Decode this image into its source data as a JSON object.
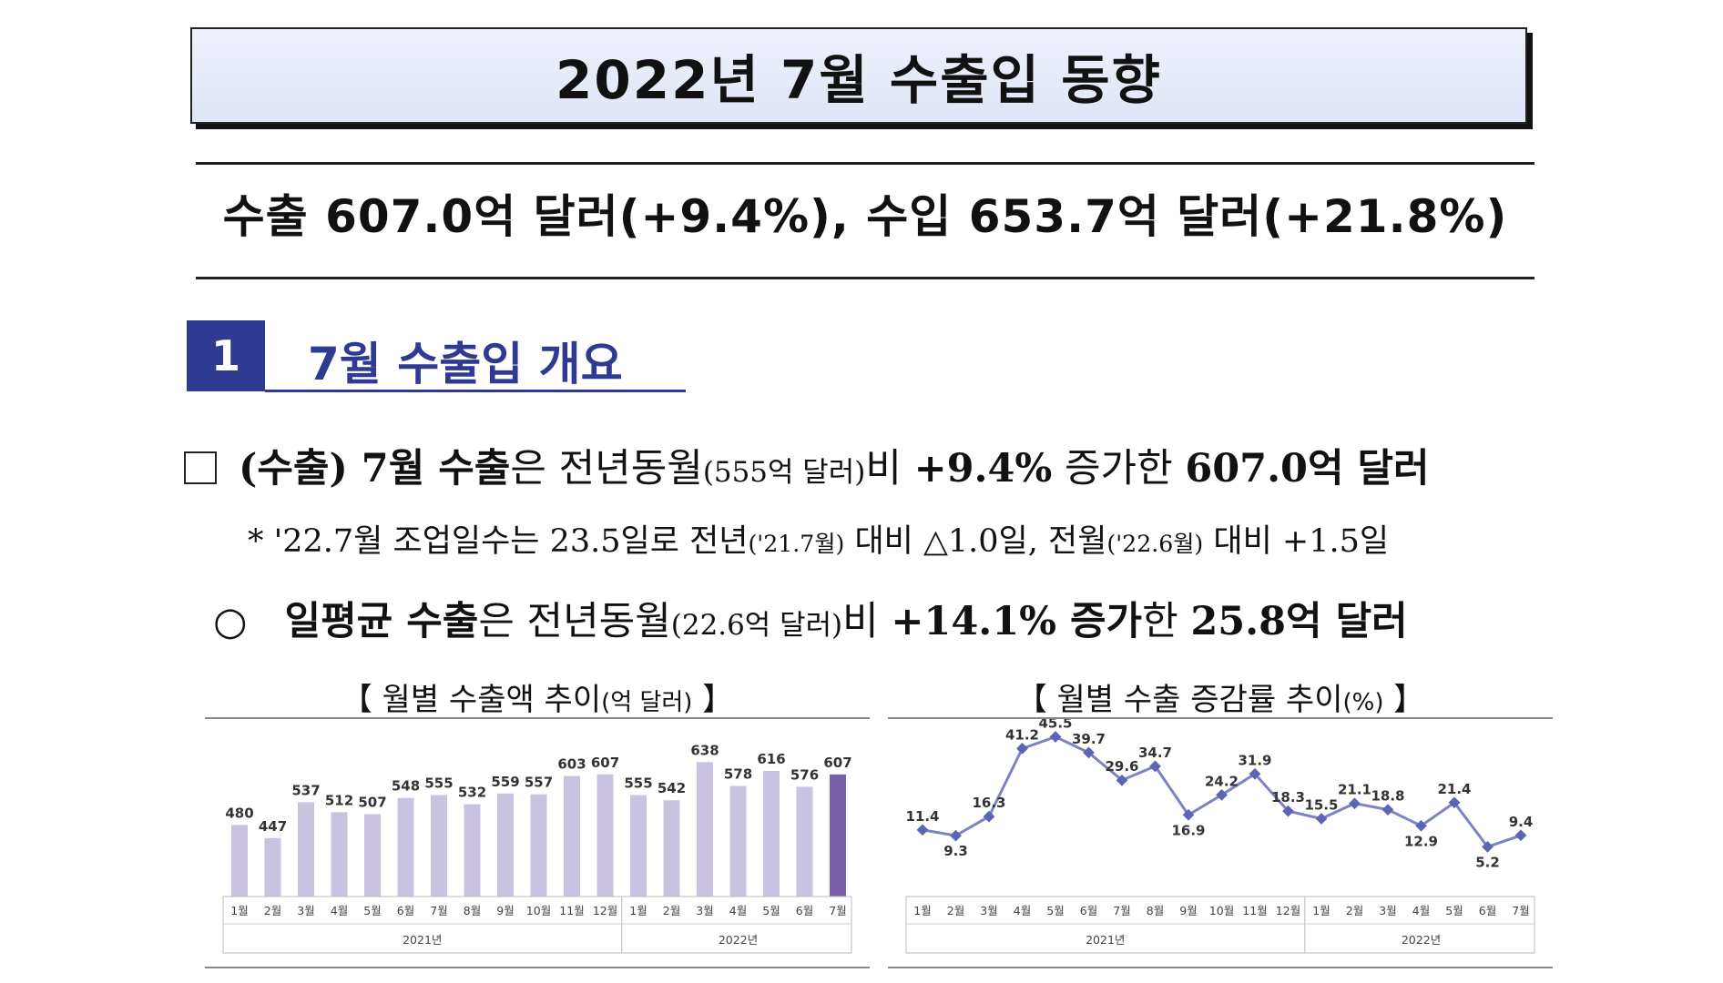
{
  "header": {
    "title": "2022년 7월 수출입 동향"
  },
  "summary": {
    "text": "수출 607.0억 달러(+9.4%), 수입 653.7억 달러(+21.8%)"
  },
  "section": {
    "number": "1",
    "title": "7월 수출입 개요"
  },
  "bullet1": {
    "tag": "(수출) 7월 수출",
    "p1": "은 전년동월",
    "p2": "(555억 달러)",
    "p3": "비 ",
    "rate": "+9.4%",
    "p4": " 증가한 ",
    "amount": "607.0억 달러"
  },
  "note": {
    "a": "* '22.7월 조업일수는 23.5일로 전년",
    "b": "('21.7월)",
    "c": " 대비 △1.0일, 전월",
    "d": "('22.6월)",
    "e": " 대비 +1.5일"
  },
  "bullet2": {
    "mark": "○",
    "label": "일평균 수출",
    "p1": "은 전년동월",
    "p2": "(22.6억 달러)",
    "p3": "비 ",
    "rate": "+14.1% 증가",
    "p4": "한 ",
    "amount": "25.8억 달러"
  },
  "chart_titles": {
    "left_main": "【 월별 수출액 추이",
    "left_unit": "(억 달러)",
    "left_end": " 】",
    "right_main": "【 월별 수출 증감률 추이",
    "right_unit": "(%)",
    "right_end": " 】"
  },
  "chart_data": [
    {
      "type": "bar",
      "categories": [
        "1월",
        "2월",
        "3월",
        "4월",
        "5월",
        "6월",
        "7월",
        "8월",
        "9월",
        "10월",
        "11월",
        "12월",
        "1월",
        "2월",
        "3월",
        "4월",
        "5월",
        "6월",
        "7월"
      ],
      "values": [
        480,
        447,
        537,
        512,
        507,
        548,
        555,
        532,
        559,
        557,
        603,
        607,
        555,
        542,
        638,
        578,
        616,
        576,
        607
      ],
      "groups": [
        {
          "label": "2021년",
          "count": 12
        },
        {
          "label": "2022년",
          "count": 7
        }
      ],
      "colors": {
        "bar": "#c9c2e0",
        "highlight": "#7b62a8"
      }
    },
    {
      "type": "line",
      "categories": [
        "1월",
        "2월",
        "3월",
        "4월",
        "5월",
        "6월",
        "7월",
        "8월",
        "9월",
        "10월",
        "11월",
        "12월",
        "1월",
        "2월",
        "3월",
        "4월",
        "5월",
        "6월",
        "7월"
      ],
      "values": [
        11.4,
        9.3,
        16.3,
        41.2,
        45.5,
        39.7,
        29.6,
        34.7,
        16.9,
        24.2,
        31.9,
        18.3,
        15.5,
        21.1,
        18.8,
        12.9,
        21.4,
        5.2,
        9.4
      ],
      "groups": [
        {
          "label": "2021년",
          "count": 12
        },
        {
          "label": "2022년",
          "count": 7
        }
      ],
      "colors": {
        "line": "#7c82c4",
        "marker": "#5c65b3"
      }
    }
  ]
}
